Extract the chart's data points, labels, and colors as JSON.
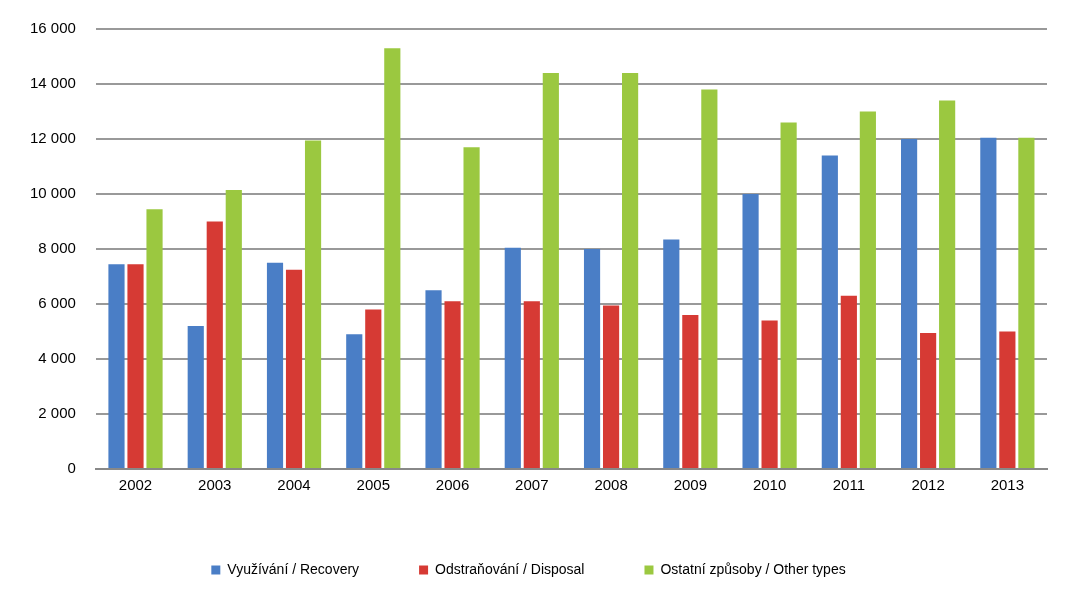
{
  "chart_data": {
    "type": "bar",
    "categories": [
      "2002",
      "2003",
      "2004",
      "2005",
      "2006",
      "2007",
      "2008",
      "2009",
      "2010",
      "2011",
      "2012",
      "2013"
    ],
    "series": [
      {
        "name": "Využívání / Recovery",
        "color": "#4a7ec6",
        "values": [
          7450,
          5200,
          7500,
          4900,
          6500,
          8050,
          8000,
          8350,
          10000,
          11400,
          12000,
          12050
        ]
      },
      {
        "name": "Odstraňování / Disposal",
        "color": "#d63a34",
        "values": [
          7450,
          9000,
          7250,
          5800,
          6100,
          6100,
          5950,
          5600,
          5400,
          6300,
          4950,
          5000
        ]
      },
      {
        "name": "Ostatní způsoby / Other types",
        "color": "#9bc840",
        "values": [
          9450,
          10150,
          11950,
          15300,
          11700,
          14400,
          14400,
          13800,
          12600,
          13000,
          13400,
          12050
        ]
      }
    ],
    "ylim": [
      0,
      16000
    ],
    "yticks": [
      {
        "value": 0,
        "label": "0"
      },
      {
        "value": 2000,
        "label": "2 000"
      },
      {
        "value": 4000,
        "label": "4 000"
      },
      {
        "value": 6000,
        "label": "6 000"
      },
      {
        "value": 8000,
        "label": "8 000"
      },
      {
        "value": 10000,
        "label": "10 000"
      },
      {
        "value": 12000,
        "label": "12 000"
      },
      {
        "value": 14000,
        "label": "14 000"
      },
      {
        "value": 16000,
        "label": "16 000"
      }
    ],
    "grid": "y",
    "legend": "bottom"
  }
}
